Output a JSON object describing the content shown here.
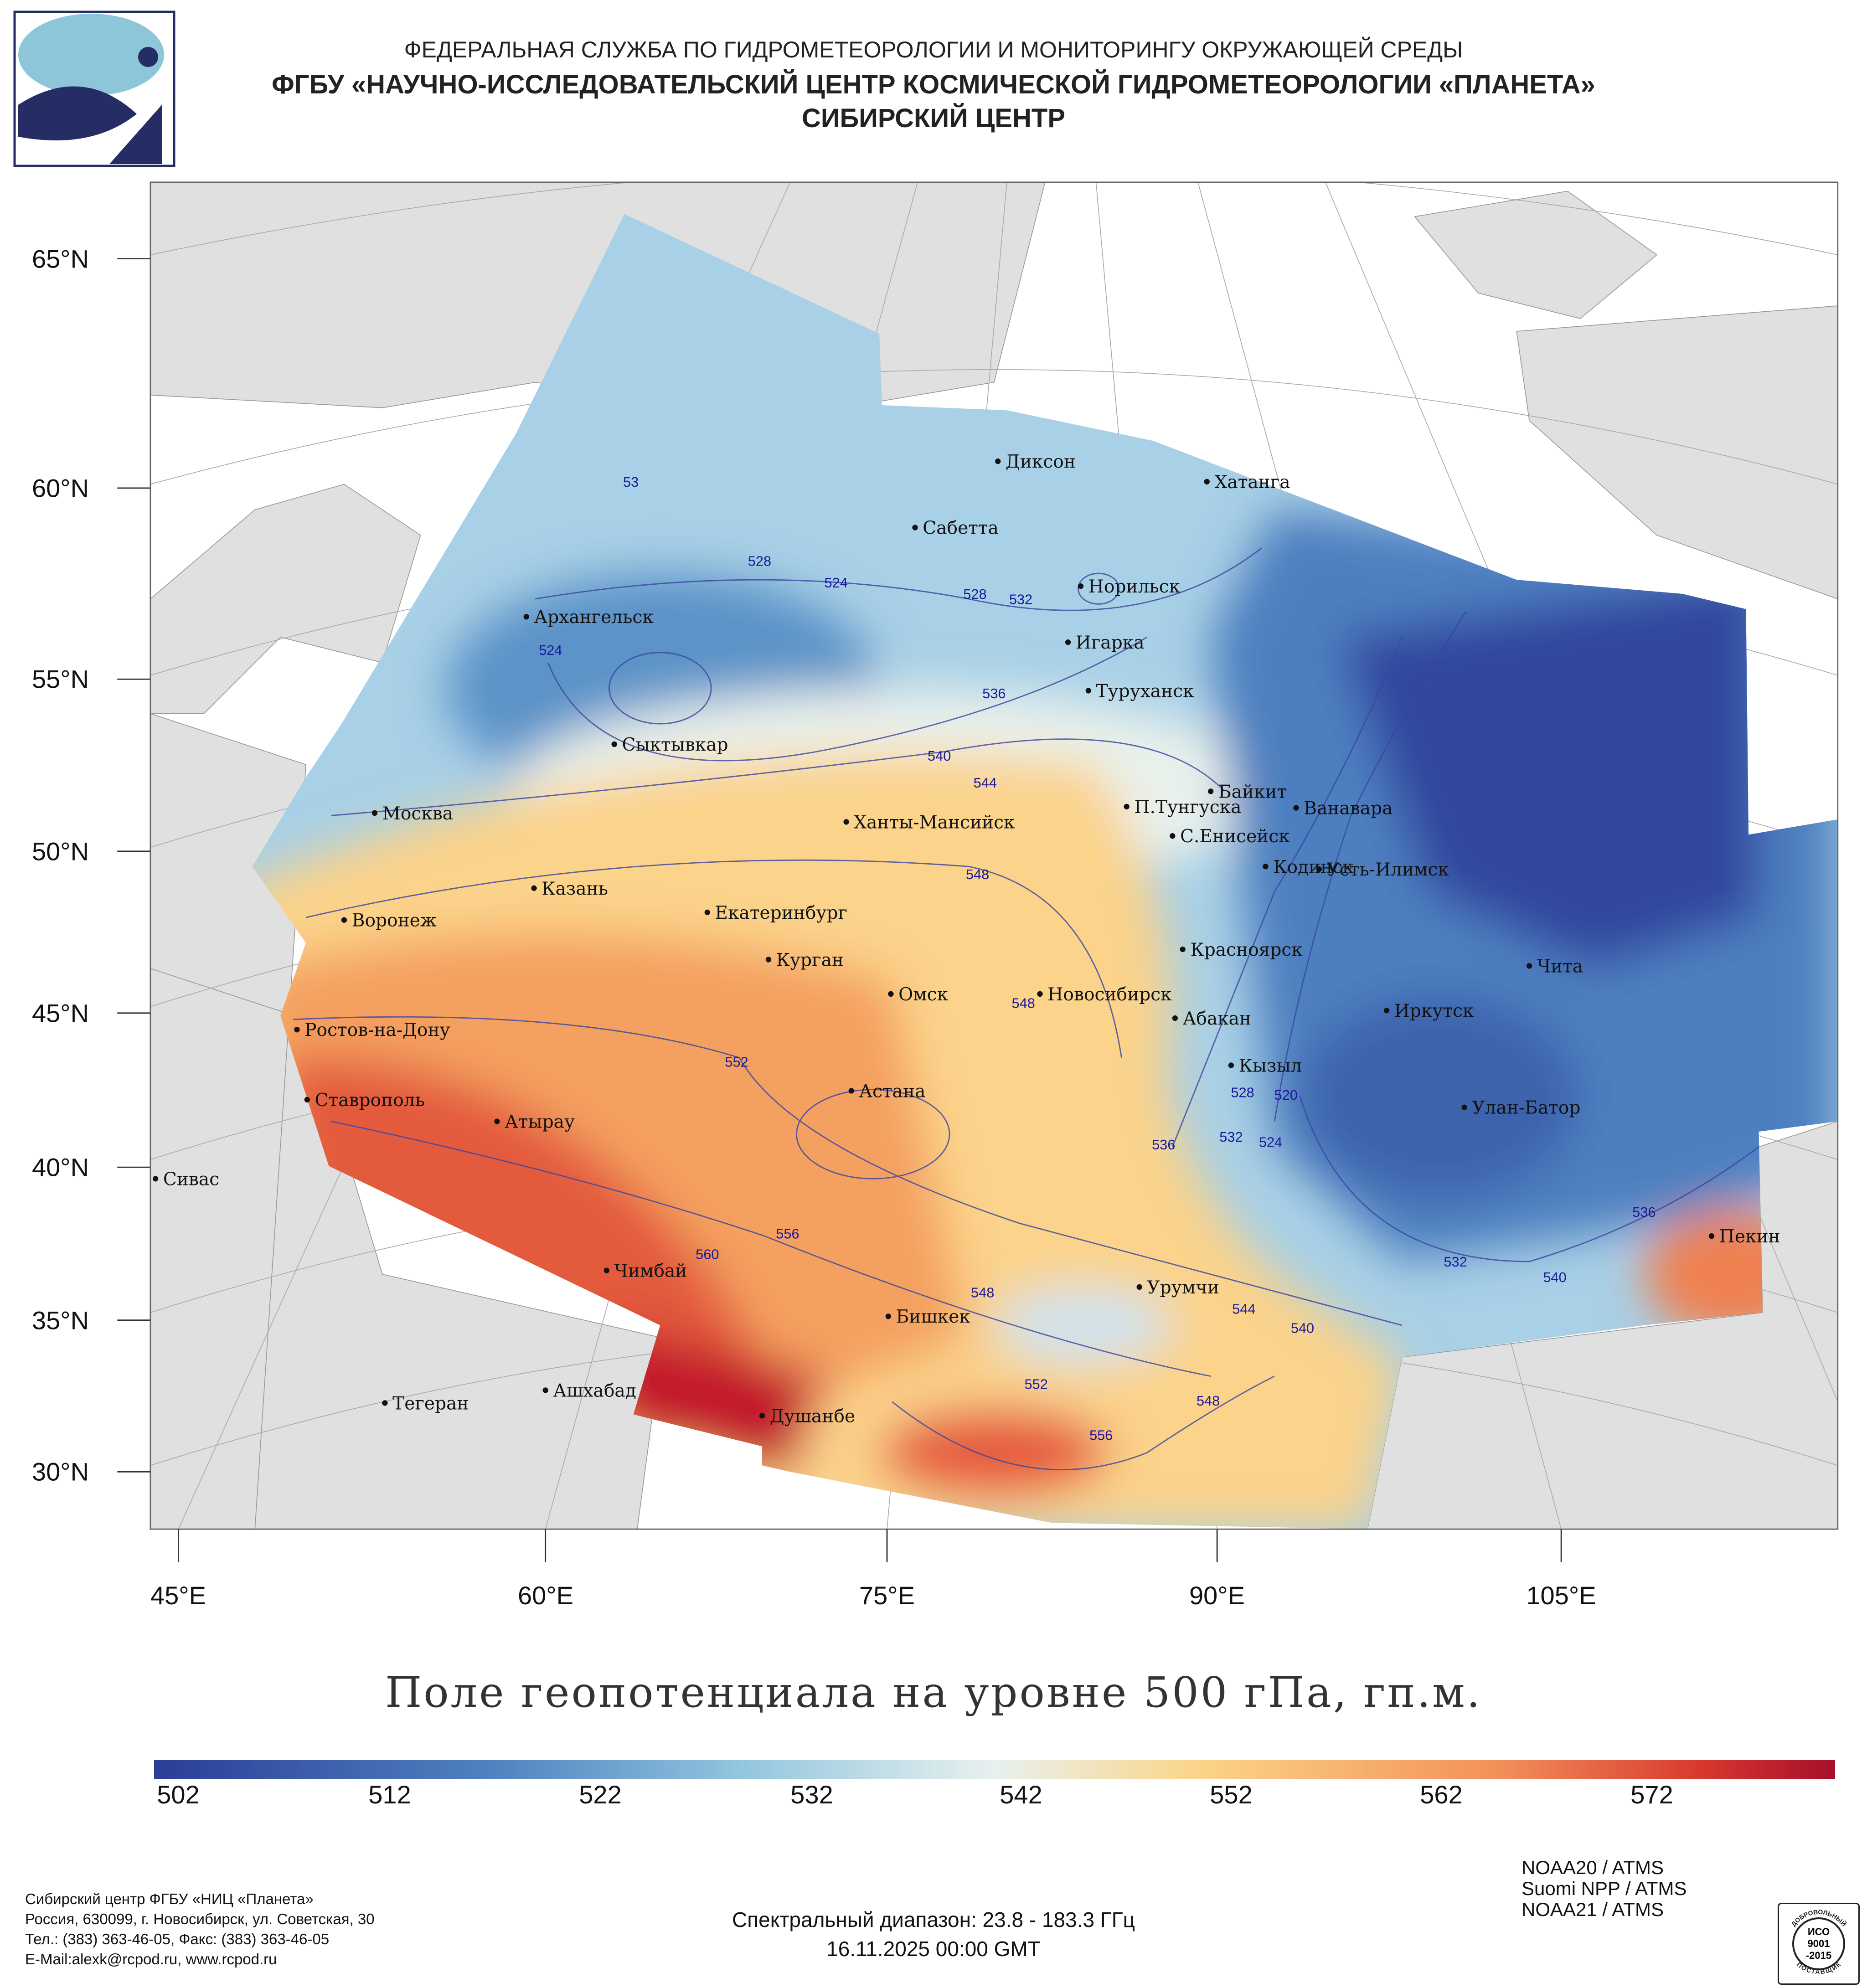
{
  "header": {
    "line1": "ФЕДЕРАЛЬНАЯ СЛУЖБА ПО ГИДРОМЕТЕОРОЛОГИИ И МОНИТОРИНГУ ОКРУЖАЮЩЕЙ СРЕДЫ",
    "line2": "ФГБУ «НАУЧНО-ИССЛЕДОВАТЕЛЬСКИЙ ЦЕНТР КОСМИЧЕСКОЙ ГИДРОМЕТЕОРОЛОГИИ «ПЛАНЕТА»",
    "line3": "СИБИРСКИЙ ЦЕНТР",
    "logo": "planeta-logo"
  },
  "map": {
    "lat_labels": [
      "65°N",
      "60°N",
      "55°N",
      "50°N",
      "45°N",
      "40°N",
      "35°N",
      "30°N"
    ],
    "lon_labels": [
      "45°E",
      "60°E",
      "75°E",
      "90°E",
      "105°E"
    ],
    "cities": [
      "Диксон",
      "Хатанга",
      "Сабетта",
      "Норильск",
      "Архангельск",
      "Игарка",
      "Туруханск",
      "Сыктывкар",
      "Байкит",
      "П.Тунгуска",
      "Ванавара",
      "Москва",
      "Ханты-Мансийск",
      "С.Енисейск",
      "Кодинск",
      "Усть-Илимск",
      "Казань",
      "Екатеринбург",
      "Воронеж",
      "Красноярск",
      "Курган",
      "Чита",
      "Омск",
      "Новосибирск",
      "Иркутск",
      "Абакан",
      "Ростов-на-Дону",
      "Кызыл",
      "Астана",
      "Ставрополь",
      "Улан-Батор",
      "Атырау",
      "Сивас",
      "Пекин",
      "Чимбай",
      "Урумчи",
      "Бишкек",
      "Ашхабад",
      "Тегеран",
      "Душанбе"
    ],
    "contour_labels": [
      "53",
      "528",
      "524",
      "528",
      "532",
      "524",
      "536",
      "540",
      "544",
      "548",
      "548",
      "552",
      "556",
      "560",
      "548",
      "544",
      "540",
      "552",
      "548",
      "556",
      "536",
      "532",
      "528",
      "524",
      "520",
      "532",
      "540",
      "536"
    ],
    "colors": {
      "low": "#2b3d97",
      "mid_low": "#6fa6d2",
      "mid": "#e8f1ee",
      "mid_high": "#f9cf7f",
      "high": "#f08050",
      "max": "#b0122a",
      "land": "#e0e0e0",
      "contour": "#3a45a0"
    }
  },
  "title": "Поле геопотенциала на уровне 500 гПа, гп.м.",
  "colorbar": {
    "min": 502,
    "max": 580,
    "labels": [
      "502",
      "512",
      "522",
      "532",
      "542",
      "552",
      "562",
      "572"
    ]
  },
  "footer": {
    "org": [
      "Сибирский центр ФГБУ «НИЦ «Планета»",
      "Россия, 630099, г. Новосибирск, ул. Советская, 30",
      "Тел.: (383) 363-46-05, Факс: (383) 363-46-05",
      "E-Mail:alexk@rcpod.ru, www.rcpod.ru"
    ],
    "spectral": "Спектральный диапазон: 23.8 - 183.3 ГГц",
    "datetime": "16.11.2025 00:00 GMT",
    "satellites": [
      "NOAA20 / ATMS",
      "Suomi NPP / ATMS",
      "NOAA21 / ATMS"
    ],
    "iso": {
      "line1": "ИСО",
      "line2": "9001",
      "line3": "-2015",
      "ring_top": "ДОБРОВОЛЬНЫЙ",
      "ring_bottom": "ПОСТАВЩИК"
    }
  }
}
